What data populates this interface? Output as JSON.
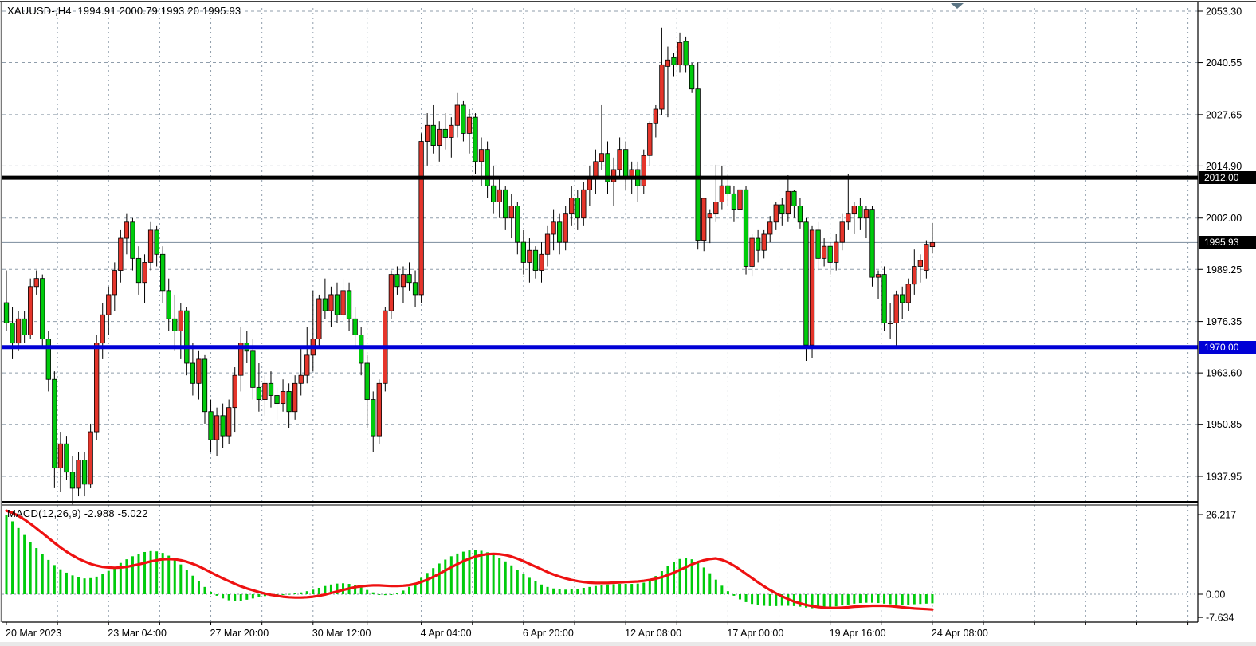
{
  "window": {
    "title": "XAUUSD-,H4  1994.91 2000.79 1993.20 1995.93",
    "symbol": "XAUUSD-",
    "timeframe": "H4"
  },
  "ohlc_readout": {
    "open": "1994.91",
    "high": "2000.79",
    "low": "1993.20",
    "close": "1995.93"
  },
  "price_axis": {
    "labels": [
      "2053.30",
      "2040.55",
      "2027.65",
      "2014.90",
      "2002.00",
      "1989.25",
      "1976.35",
      "1963.60",
      "1950.85",
      "1937.95"
    ],
    "values": [
      2053.3,
      2040.55,
      2027.65,
      2014.9,
      2002.0,
      1989.25,
      1976.35,
      1963.6,
      1950.85,
      1937.95
    ]
  },
  "lines": {
    "resistance": {
      "label": "2012.00",
      "price": 2012.0,
      "color": "#000000"
    },
    "current": {
      "label": "1995.93",
      "price": 1995.93,
      "color": "#8a99a8"
    },
    "support": {
      "label": "1970.00",
      "price": 1970.0,
      "color": "#0000d6"
    }
  },
  "time_axis": [
    {
      "label": "20 Mar 2023",
      "i": 0
    },
    {
      "label": "23 Mar 04:00",
      "i": 17
    },
    {
      "label": "27 Mar 20:00",
      "i": 34
    },
    {
      "label": "30 Mar 12:00",
      "i": 51
    },
    {
      "label": "4 Apr 04:00",
      "i": 69
    },
    {
      "label": "6 Apr 20:00",
      "i": 86
    },
    {
      "label": "12 Apr 08:00",
      "i": 103
    },
    {
      "label": "17 Apr 00:00",
      "i": 120
    },
    {
      "label": "19 Apr 16:00",
      "i": 137
    },
    {
      "label": "24 Apr 08:00",
      "i": 154
    }
  ],
  "macd": {
    "label": "MACD(12,26,9) -2.988 -5.022",
    "name": "MACD",
    "params": "12,26,9",
    "macd_value": -2.988,
    "signal_value": -5.022,
    "axis": [
      {
        "label": "26.217",
        "v": 26.217
      },
      {
        "label": "0.00",
        "v": 0
      },
      {
        "label": "-7.634",
        "v": -7.634
      }
    ]
  },
  "colors": {
    "bull": "#e5352b",
    "bear": "#00cb0c",
    "wick": "#000000",
    "grid": "#8f9dab",
    "current_line": "#8a99a8",
    "resistance_line": "#000000",
    "support_line": "#0000d6",
    "macd_hist": "#00cb0c",
    "macd_signal": "#ee1111",
    "shift_marker": "#5c7584",
    "pane_border": "#000000"
  },
  "chart_data": {
    "type": "candlestick",
    "title": "XAUUSD- H4 with MACD(12,26,9)",
    "symbol": "XAUUSD-",
    "timeframe": "H4",
    "ylim": [
      1931,
      2055
    ],
    "grid": true,
    "legend_position": "none",
    "candles": [
      [
        1981,
        1989,
        1974,
        1976
      ],
      [
        1976,
        1980,
        1967,
        1971
      ],
      [
        1971,
        1979,
        1969,
        1977
      ],
      [
        1977,
        1979,
        1971,
        1973
      ],
      [
        1973,
        1987,
        1972,
        1985
      ],
      [
        1985,
        1989,
        1983,
        1987
      ],
      [
        1987,
        1988,
        1970,
        1972
      ],
      [
        1972,
        1974,
        1959,
        1962
      ],
      [
        1962,
        1964,
        1935,
        1940
      ],
      [
        1940,
        1949,
        1934,
        1946
      ],
      [
        1946,
        1948,
        1937,
        1939
      ],
      [
        1939,
        1943,
        1931,
        1935
      ],
      [
        1935,
        1944,
        1933,
        1942
      ],
      [
        1942,
        1944,
        1933,
        1936
      ],
      [
        1936,
        1951,
        1935,
        1949
      ],
      [
        1949,
        1973,
        1947,
        1971
      ],
      [
        1971,
        1981,
        1967,
        1978
      ],
      [
        1978,
        1985,
        1973,
        1983
      ],
      [
        1983,
        1991,
        1979,
        1989
      ],
      [
        1989,
        1999,
        1986,
        1997
      ],
      [
        1997,
        2003,
        1993,
        2001
      ],
      [
        2001,
        2002,
        1989,
        1992
      ],
      [
        1992,
        1995,
        1983,
        1986
      ],
      [
        1986,
        1993,
        1981,
        1991
      ],
      [
        1991,
        2001,
        1989,
        1999
      ],
      [
        1999,
        2000,
        1990,
        1993
      ],
      [
        1993,
        1995,
        1981,
        1984
      ],
      [
        1984,
        1987,
        1974,
        1977
      ],
      [
        1977,
        1983,
        1969,
        1974
      ],
      [
        1974,
        1981,
        1967,
        1979
      ],
      [
        1979,
        1980,
        1963,
        1966
      ],
      [
        1966,
        1971,
        1958,
        1961
      ],
      [
        1961,
        1969,
        1957,
        1967
      ],
      [
        1967,
        1968,
        1951,
        1954
      ],
      [
        1954,
        1957,
        1944,
        1947
      ],
      [
        1947,
        1955,
        1943,
        1953
      ],
      [
        1953,
        1956,
        1945,
        1948
      ],
      [
        1948,
        1957,
        1946,
        1955
      ],
      [
        1955,
        1965,
        1949,
        1963
      ],
      [
        1963,
        1975,
        1959,
        1971
      ],
      [
        1971,
        1974,
        1966,
        1969
      ],
      [
        1969,
        1972,
        1957,
        1960
      ],
      [
        1960,
        1966,
        1954,
        1957
      ],
      [
        1957,
        1963,
        1953,
        1961
      ],
      [
        1961,
        1964,
        1955,
        1958
      ],
      [
        1958,
        1960,
        1952,
        1956
      ],
      [
        1956,
        1962,
        1954,
        1959
      ],
      [
        1959,
        1961,
        1950,
        1954
      ],
      [
        1954,
        1963,
        1952,
        1961
      ],
      [
        1961,
        1970,
        1958,
        1963
      ],
      [
        1963,
        1975,
        1961,
        1968
      ],
      [
        1968,
        1984,
        1964,
        1972
      ],
      [
        1972,
        1983,
        1970,
        1982
      ],
      [
        1982,
        1987,
        1977,
        1979
      ],
      [
        1979,
        1985,
        1975,
        1983
      ],
      [
        1983,
        1986,
        1976,
        1978
      ],
      [
        1978,
        1987,
        1976,
        1984
      ],
      [
        1984,
        1986,
        1974,
        1977
      ],
      [
        1977,
        1980,
        1970,
        1973
      ],
      [
        1973,
        1975,
        1963,
        1966
      ],
      [
        1966,
        1968,
        1950,
        1957
      ],
      [
        1957,
        1959,
        1944,
        1948
      ],
      [
        1948,
        1962,
        1946,
        1961
      ],
      [
        1961,
        1980,
        1959,
        1979
      ],
      [
        1979,
        1989,
        1977,
        1988
      ],
      [
        1988,
        1990,
        1983,
        1985
      ],
      [
        1985,
        1990,
        1981,
        1988
      ],
      [
        1988,
        1991,
        1984,
        1986
      ],
      [
        1986,
        1989,
        1980,
        1983
      ],
      [
        1983,
        2023,
        1981,
        2021
      ],
      [
        2021,
        2028,
        2015,
        2025
      ],
      [
        2025,
        2030,
        2018,
        2020
      ],
      [
        2020,
        2026,
        2016,
        2024
      ],
      [
        2024,
        2028,
        2019,
        2022
      ],
      [
        2022,
        2027,
        2017,
        2025
      ],
      [
        2025,
        2033,
        2022,
        2030
      ],
      [
        2030,
        2031,
        2021,
        2023
      ],
      [
        2023,
        2029,
        2018,
        2027
      ],
      [
        2027,
        2028,
        2013,
        2016
      ],
      [
        2016,
        2022,
        2010,
        2019
      ],
      [
        2019,
        2021,
        2007,
        2010
      ],
      [
        2010,
        2015,
        2003,
        2006
      ],
      [
        2006,
        2012,
        2002,
        2009
      ],
      [
        2009,
        2010,
        1999,
        2002
      ],
      [
        2002,
        2008,
        1997,
        2005
      ],
      [
        2005,
        2006,
        1993,
        1996
      ],
      [
        1996,
        1999,
        1988,
        1991
      ],
      [
        1991,
        1997,
        1986,
        1994
      ],
      [
        1994,
        1995,
        1987,
        1989
      ],
      [
        1989,
        1996,
        1986,
        1993
      ],
      [
        1993,
        2000,
        1990,
        1998
      ],
      [
        1998,
        2004,
        1994,
        2001
      ],
      [
        2001,
        2003,
        1993,
        1996
      ],
      [
        1996,
        2005,
        1994,
        2003
      ],
      [
        2003,
        2010,
        2000,
        2007
      ],
      [
        2007,
        2009,
        1999,
        2002
      ],
      [
        2002,
        2011,
        2000,
        2009
      ],
      [
        2009,
        2015,
        2005,
        2012
      ],
      [
        2012,
        2019,
        2008,
        2016
      ],
      [
        2016,
        2030,
        2014,
        2018
      ],
      [
        2018,
        2021,
        2008,
        2011
      ],
      [
        2011,
        2017,
        2005,
        2014
      ],
      [
        2014,
        2022,
        2012,
        2019
      ],
      [
        2019,
        2021,
        2009,
        2012
      ],
      [
        2012,
        2016,
        2008,
        2014
      ],
      [
        2014,
        2016,
        2006,
        2010
      ],
      [
        2010,
        2019,
        2008,
        2017.5
      ],
      [
        2017.5,
        2026,
        2015,
        2025.4
      ],
      [
        2025.4,
        2030,
        2022,
        2029
      ],
      [
        2029,
        2049.2,
        2027.5,
        2040
      ],
      [
        2039.6,
        2044.5,
        2027,
        2041.2
      ],
      [
        2041.8,
        2043,
        2037,
        2040
      ],
      [
        2040,
        2048,
        2038,
        2045.5
      ],
      [
        2045.8,
        2047,
        2038,
        2039.9
      ],
      [
        2039.9,
        2040.5,
        2033,
        2034
      ],
      [
        2034,
        2040.6,
        1994.2,
        1996.5
      ],
      [
        1996.5,
        2007,
        1993.8,
        2006.9
      ],
      [
        2002,
        2004,
        1995.8,
        2003
      ],
      [
        2003,
        2015.2,
        2001,
        2006
      ],
      [
        2006,
        2015,
        2004,
        2010
      ],
      [
        2010,
        2013,
        2005,
        2008
      ],
      [
        2008,
        2010,
        2001,
        2004
      ],
      [
        2004,
        2011,
        2002,
        2009
      ],
      [
        2009,
        2010,
        1988,
        1990
      ],
      [
        1990,
        1998,
        1987.5,
        1997
      ],
      [
        1997,
        1999,
        1991,
        1994
      ],
      [
        1994,
        1999,
        1992,
        1998
      ],
      [
        1998,
        2002.5,
        1996,
        2001
      ],
      [
        2001,
        2006,
        1999,
        2005.3
      ],
      [
        2005.3,
        2007,
        2000,
        2003
      ],
      [
        2003,
        2012.6,
        2001,
        2008.6
      ],
      [
        2008.6,
        2009,
        2002,
        2005
      ],
      [
        2005,
        2007,
        1999.4,
        2001
      ],
      [
        2001,
        2002,
        1966.6,
        1970.5
      ],
      [
        1970.5,
        2000,
        1967.2,
        1999
      ],
      [
        1999,
        2001,
        1989,
        1992
      ],
      [
        1992,
        1997,
        1990,
        1995
      ],
      [
        1995,
        1996,
        1988,
        1991
      ],
      [
        1991,
        1998,
        1989,
        1996
      ],
      [
        1996,
        2003,
        1994,
        2001
      ],
      [
        2001,
        2013,
        1999,
        2003
      ],
      [
        2003,
        2006,
        1998,
        2005
      ],
      [
        2005,
        2007,
        1999,
        2002
      ],
      [
        2002,
        2005,
        1997,
        2004
      ],
      [
        2004,
        2005,
        1985,
        1987.3
      ],
      [
        1987.3,
        1989,
        1982,
        1988
      ],
      [
        1988,
        1990,
        1974,
        1976
      ],
      [
        1976,
        1981,
        1972,
        1976
      ],
      [
        1976,
        1984,
        1970,
        1983
      ],
      [
        1983,
        1985,
        1977,
        1981
      ],
      [
        1981,
        1987,
        1979,
        1985.6
      ],
      [
        1985.6,
        1994.2,
        1983,
        1990
      ],
      [
        1990,
        1993,
        1986,
        1991.5
      ],
      [
        1989,
        1996.5,
        1987,
        1995.5
      ],
      [
        1994.91,
        2000.79,
        1993.2,
        1995.93
      ]
    ],
    "indicator": {
      "type": "MACD",
      "range": [
        -7.634,
        26.217
      ],
      "histogram": [
        26.2,
        24.0,
        21.8,
        19.5,
        17.3,
        15.2,
        13.2,
        11.3,
        9.6,
        8.2,
        7.1,
        6.2,
        5.6,
        5.2,
        5.3,
        5.8,
        6.6,
        7.7,
        9.0,
        10.3,
        11.5,
        12.5,
        13.3,
        13.9,
        14.2,
        14.1,
        13.6,
        12.7,
        11.4,
        9.8,
        8.0,
        6.1,
        4.2,
        2.4,
        0.8,
        -0.5,
        -1.4,
        -2.0,
        -2.2,
        -2.1,
        -1.8,
        -1.4,
        -1.0,
        -0.6,
        -0.3,
        -0.1,
        0.0,
        0.1,
        0.3,
        0.6,
        1.0,
        1.5,
        2.1,
        2.7,
        3.2,
        3.5,
        3.6,
        3.4,
        2.9,
        2.2,
        1.4,
        0.6,
        0.0,
        -0.3,
        -0.2,
        0.3,
        1.2,
        2.4,
        3.8,
        5.4,
        7.0,
        8.6,
        10.1,
        11.4,
        12.5,
        13.4,
        14.0,
        14.4,
        14.5,
        14.3,
        13.8,
        13.0,
        12.0,
        10.8,
        9.5,
        8.1,
        6.7,
        5.4,
        4.2,
        3.2,
        2.4,
        1.9,
        1.6,
        1.5,
        1.6,
        1.8,
        2.1,
        2.4,
        2.7,
        3.0,
        3.2,
        3.3,
        3.4,
        3.4,
        3.4,
        3.5,
        3.8,
        4.6,
        6.0,
        7.6,
        9.2,
        10.6,
        11.6,
        11.9,
        11.5,
        10.4,
        8.8,
        6.9,
        4.8,
        2.8,
        1.0,
        -0.5,
        -1.7,
        -2.6,
        -3.2,
        -3.6,
        -3.8,
        -3.9,
        -3.9,
        -3.8,
        -3.8,
        -3.9,
        -4.1,
        -4.4,
        -4.6,
        -4.6,
        -4.5,
        -4.3,
        -4.0,
        -3.7,
        -3.4,
        -3.1,
        -2.9,
        -2.8,
        -2.8,
        -2.9,
        -3.1,
        -3.3,
        -3.4,
        -3.5,
        -3.4,
        -3.3,
        -3.2,
        -3.1,
        -2.988
      ],
      "signal": [
        27.5,
        26.8,
        25.8,
        24.6,
        23.2,
        21.7,
        20.1,
        18.5,
        16.9,
        15.4,
        14.0,
        12.8,
        11.7,
        10.8,
        10.0,
        9.4,
        9.0,
        8.8,
        8.7,
        8.8,
        9.0,
        9.4,
        9.8,
        10.3,
        10.8,
        11.2,
        11.5,
        11.6,
        11.5,
        11.2,
        10.7,
        10.0,
        9.2,
        8.2,
        7.2,
        6.2,
        5.2,
        4.3,
        3.4,
        2.6,
        1.9,
        1.3,
        0.7,
        0.2,
        -0.2,
        -0.5,
        -0.8,
        -1.0,
        -1.1,
        -1.1,
        -1.0,
        -0.8,
        -0.5,
        -0.1,
        0.4,
        0.9,
        1.4,
        1.9,
        2.3,
        2.6,
        2.8,
        2.9,
        2.9,
        2.8,
        2.7,
        2.7,
        2.8,
        3.0,
        3.4,
        4.0,
        4.8,
        5.7,
        6.7,
        7.8,
        8.9,
        9.9,
        10.9,
        11.7,
        12.4,
        12.9,
        13.2,
        13.3,
        13.2,
        12.9,
        12.4,
        11.7,
        10.9,
        10.0,
        9.1,
        8.2,
        7.3,
        6.5,
        5.8,
        5.2,
        4.7,
        4.3,
        4.0,
        3.8,
        3.7,
        3.7,
        3.7,
        3.8,
        3.9,
        4.0,
        4.1,
        4.2,
        4.4,
        4.7,
        5.1,
        5.6,
        6.3,
        7.1,
        8.0,
        8.9,
        9.8,
        10.6,
        11.2,
        11.6,
        11.8,
        11.3,
        10.5,
        9.4,
        8.1,
        6.7,
        5.3,
        3.9,
        2.6,
        1.4,
        0.3,
        -0.7,
        -1.6,
        -2.4,
        -3.0,
        -3.5,
        -3.9,
        -4.2,
        -4.4,
        -4.5,
        -4.5,
        -4.4,
        -4.3,
        -4.1,
        -4.0,
        -3.9,
        -3.8,
        -3.8,
        -3.8,
        -3.9,
        -4.1,
        -4.3,
        -4.5,
        -4.7,
        -4.8,
        -4.9,
        -5.022
      ]
    }
  }
}
